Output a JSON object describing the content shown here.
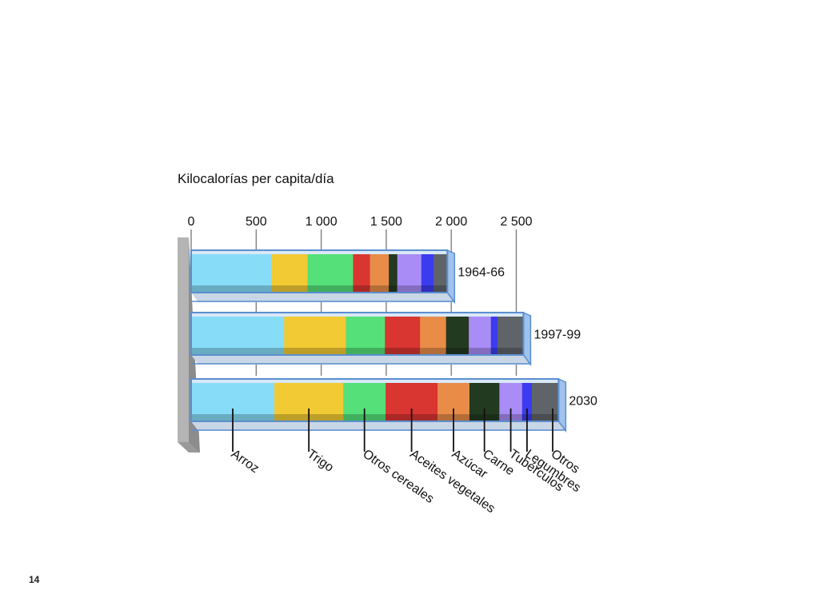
{
  "page": {
    "number": "14"
  },
  "chart_data": {
    "type": "bar",
    "stacked": true,
    "orientation": "horizontal",
    "title": "Kilocalorías per capita/día",
    "x_ticks": [
      "0",
      "500",
      "1 000",
      "1 500",
      "2 000",
      "2 500"
    ],
    "x_tick_values": [
      0,
      500,
      1000,
      1500,
      2000,
      2500
    ],
    "xlim": [
      0,
      2800
    ],
    "categories": [
      "1964-66",
      "1997-99",
      "2030"
    ],
    "series": [
      {
        "name": "Arroz",
        "color": "#87dcf8",
        "values": [
          615,
          715,
          640
        ]
      },
      {
        "name": "Trigo",
        "color": "#f2ca33",
        "values": [
          280,
          475,
          530
        ]
      },
      {
        "name": "Otros cereales",
        "color": "#55e07a",
        "values": [
          350,
          300,
          325
        ]
      },
      {
        "name": "Aceites vegetales",
        "color": "#d93531",
        "values": [
          130,
          270,
          400
        ]
      },
      {
        "name": "Azúcar",
        "color": "#e88c48",
        "values": [
          145,
          200,
          245
        ]
      },
      {
        "name": "Carne",
        "color": "#223a20",
        "values": [
          65,
          175,
          230
        ]
      },
      {
        "name": "Tubérculos",
        "color": "#a98cf5",
        "values": [
          185,
          170,
          175
        ]
      },
      {
        "name": "Legumbres",
        "color": "#3b3bf0",
        "values": [
          95,
          50,
          75
        ]
      },
      {
        "name": "Otros",
        "color": "#5f6469",
        "values": [
          105,
          200,
          205
        ]
      }
    ],
    "legend": "labels-below-bars",
    "grid": true
  }
}
